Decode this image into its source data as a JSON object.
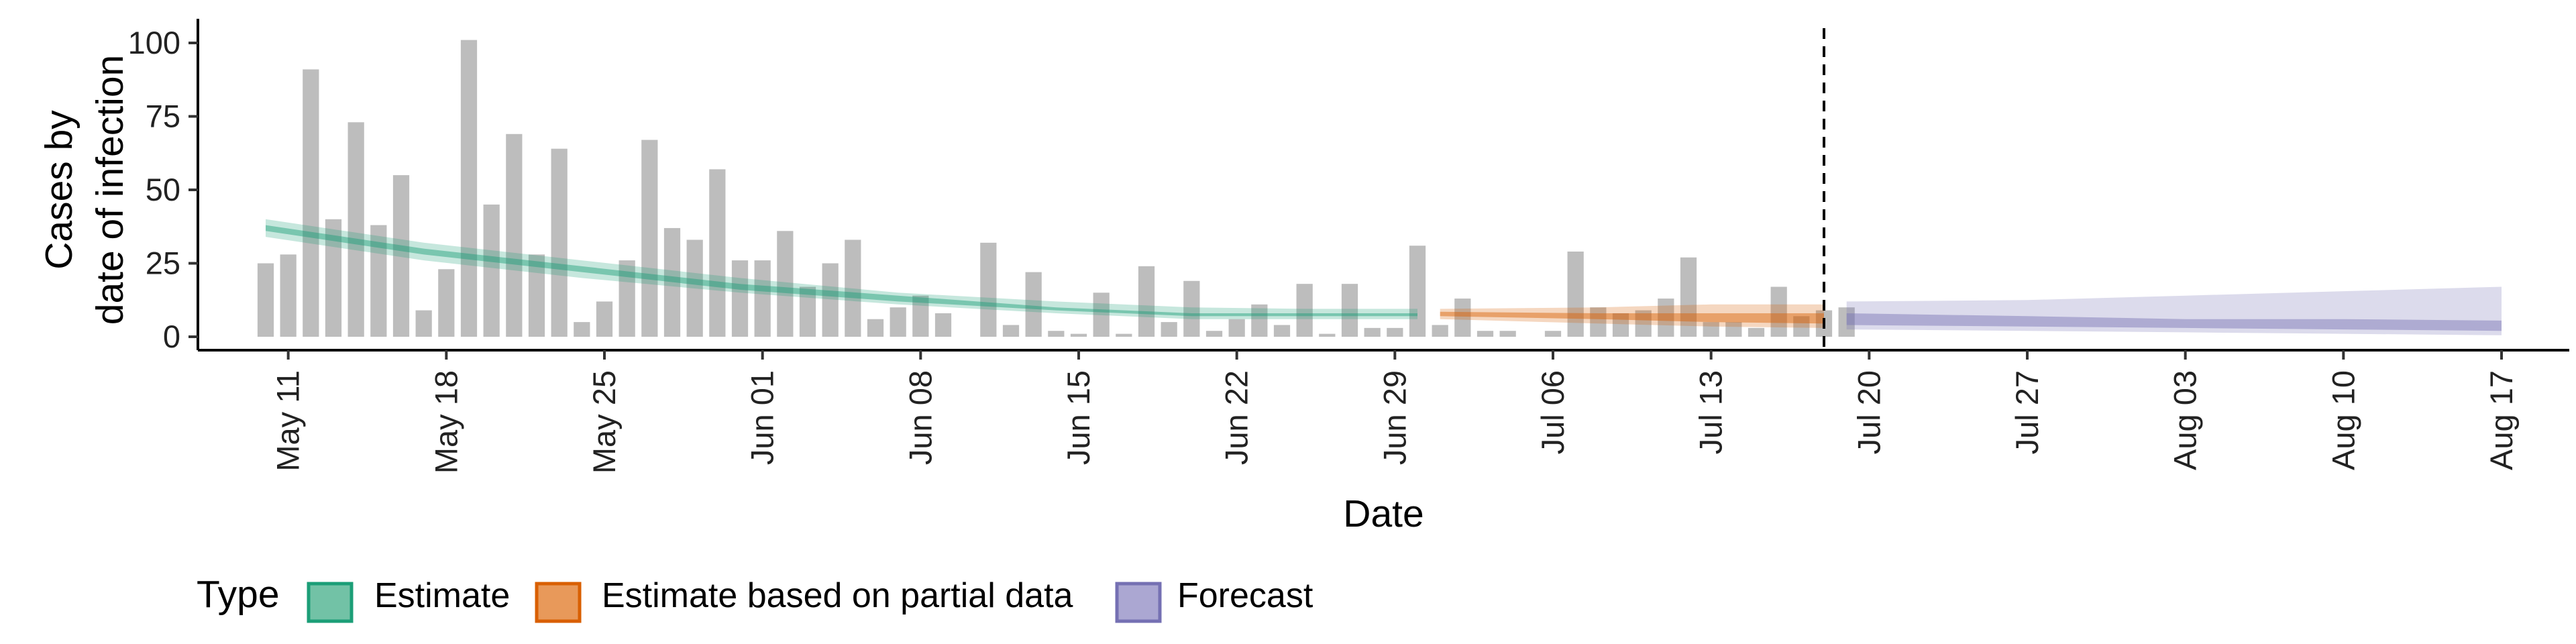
{
  "chart_data": {
    "type": "bar+area",
    "xlabel": "Date",
    "ylabel_lines": [
      "Cases by",
      "date of infection"
    ],
    "ylim": [
      0,
      105
    ],
    "y_ticks": [
      0,
      25,
      50,
      75,
      100
    ],
    "x_range": [
      "2020-05-07",
      "2020-08-20"
    ],
    "x_ticks": [
      {
        "date": "2020-05-11",
        "label": "May 11"
      },
      {
        "date": "2020-05-18",
        "label": "May 18"
      },
      {
        "date": "2020-05-25",
        "label": "May 25"
      },
      {
        "date": "2020-06-01",
        "label": "Jun 01"
      },
      {
        "date": "2020-06-08",
        "label": "Jun 08"
      },
      {
        "date": "2020-06-15",
        "label": "Jun 15"
      },
      {
        "date": "2020-06-22",
        "label": "Jun 22"
      },
      {
        "date": "2020-06-29",
        "label": "Jun 29"
      },
      {
        "date": "2020-07-06",
        "label": "Jul 06"
      },
      {
        "date": "2020-07-13",
        "label": "Jul 13"
      },
      {
        "date": "2020-07-20",
        "label": "Jul 20"
      },
      {
        "date": "2020-07-27",
        "label": "Jul 27"
      },
      {
        "date": "2020-08-03",
        "label": "Aug 03"
      },
      {
        "date": "2020-08-10",
        "label": "Aug 10"
      },
      {
        "date": "2020-08-17",
        "label": "Aug 17"
      }
    ],
    "bar_color": "#bdbdbd",
    "bars_start_date": "2020-05-10",
    "bar_values": [
      25,
      28,
      91,
      40,
      73,
      38,
      55,
      9,
      23,
      101,
      45,
      69,
      28,
      64,
      5,
      12,
      26,
      67,
      37,
      33,
      57,
      26,
      26,
      36,
      17,
      25,
      33,
      6,
      10,
      14,
      8,
      0,
      32,
      4,
      22,
      2,
      1,
      15,
      1,
      24,
      5,
      19,
      2,
      6,
      11,
      4,
      18,
      1,
      18,
      3,
      3,
      31,
      4,
      13,
      2,
      2,
      0,
      2,
      29,
      10,
      8,
      9,
      13,
      27,
      5,
      5,
      3,
      17,
      7,
      9,
      10
    ],
    "vline_date": "2020-07-18",
    "series": [
      {
        "name": "Estimate",
        "color": "#1b9e77",
        "points": [
          {
            "date": "2020-05-10",
            "lo90": 34,
            "lo50": 36,
            "hi50": 38,
            "hi90": 40
          },
          {
            "date": "2020-05-17",
            "lo90": 26,
            "lo50": 28,
            "hi50": 30,
            "hi90": 32
          },
          {
            "date": "2020-05-24",
            "lo90": 20,
            "lo50": 22,
            "hi50": 24,
            "hi90": 26
          },
          {
            "date": "2020-05-31",
            "lo90": 15,
            "lo50": 16,
            "hi50": 18,
            "hi90": 20
          },
          {
            "date": "2020-06-07",
            "lo90": 11,
            "lo50": 12,
            "hi50": 14,
            "hi90": 15
          },
          {
            "date": "2020-06-14",
            "lo90": 8,
            "lo50": 9,
            "hi50": 10,
            "hi90": 12
          },
          {
            "date": "2020-06-20",
            "lo90": 6,
            "lo50": 7,
            "hi50": 8,
            "hi90": 10
          },
          {
            "date": "2020-06-25",
            "lo90": 6,
            "lo50": 7,
            "hi50": 8,
            "hi90": 9.5
          },
          {
            "date": "2020-06-30",
            "lo90": 6,
            "lo50": 7,
            "hi50": 8,
            "hi90": 9.5
          }
        ]
      },
      {
        "name": "Estimate based on partial data",
        "color": "#d95f02",
        "points": [
          {
            "date": "2020-07-01",
            "lo90": 6,
            "lo50": 7,
            "hi50": 8.5,
            "hi90": 9.5
          },
          {
            "date": "2020-07-08",
            "lo90": 4.5,
            "lo50": 6,
            "hi50": 8,
            "hi90": 10
          },
          {
            "date": "2020-07-13",
            "lo90": 3.5,
            "lo50": 5,
            "hi50": 8,
            "hi90": 11
          },
          {
            "date": "2020-07-18",
            "lo90": 3,
            "lo50": 4.5,
            "hi50": 8,
            "hi90": 11
          }
        ]
      },
      {
        "name": "Forecast",
        "color": "#7570b3",
        "points": [
          {
            "date": "2020-07-19",
            "lo90": 2.5,
            "lo50": 4,
            "hi50": 8,
            "hi90": 12
          },
          {
            "date": "2020-07-27",
            "lo90": 2,
            "lo50": 3.5,
            "hi50": 7,
            "hi90": 12.5
          },
          {
            "date": "2020-08-03",
            "lo90": 1.5,
            "lo50": 3,
            "hi50": 6,
            "hi90": 14
          },
          {
            "date": "2020-08-10",
            "lo90": 1,
            "lo50": 2.5,
            "hi50": 6,
            "hi90": 15.5
          },
          {
            "date": "2020-08-17",
            "lo90": 0.5,
            "lo50": 2,
            "hi50": 5.5,
            "hi90": 17
          }
        ]
      }
    ],
    "legend": {
      "title": "Type",
      "position": "bottom-left",
      "items": [
        {
          "label": "Estimate",
          "fill": "#72c2a6",
          "stroke": "#1b9e77"
        },
        {
          "label": "Estimate based on partial data",
          "fill": "#e8995a",
          "stroke": "#d95f02"
        },
        {
          "label": "Forecast",
          "fill": "#aba7d2",
          "stroke": "#7570b3"
        }
      ]
    }
  }
}
